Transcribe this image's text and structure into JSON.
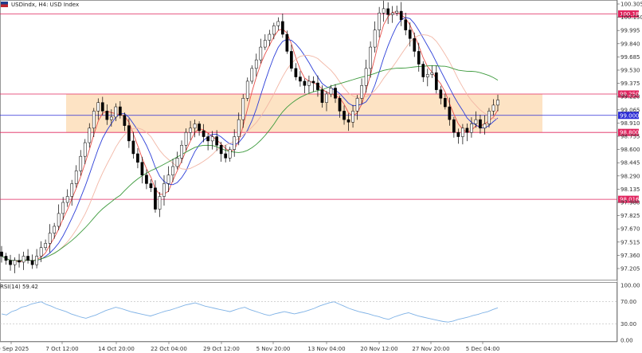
{
  "header": {
    "symbol": "USDindx",
    "timeframe": "H4",
    "description": "USD Index",
    "title": "USDindx, H4:  USD Index"
  },
  "rsi": {
    "label": "RSI(14) 59.42",
    "levels": [
      "100.00",
      "70.00",
      "30.00",
      "0.00"
    ]
  },
  "price_axis": {
    "labels": [
      "100.305",
      "100.150",
      "99.995",
      "99.840",
      "99.685",
      "99.530",
      "99.375",
      "99.220",
      "99.065",
      "98.910",
      "98.755",
      "98.600",
      "98.445",
      "98.290",
      "98.135",
      "97.980",
      "97.825",
      "97.670",
      "97.515",
      "97.360",
      "97.205"
    ]
  },
  "time_axis": {
    "labels": [
      "30 Sep 2025",
      "7 Oct 12:00",
      "14 Oct 20:00",
      "22 Oct 04:00",
      "29 Oct 12:00",
      "5 Nov 20:00",
      "13 Nov 04:00",
      "20 Nov 12:00",
      "27 Nov 20:00",
      "5 Dec 04:00"
    ]
  },
  "levels": [
    {
      "price": "100.188",
      "color": "#e0245e"
    },
    {
      "price": "99.250",
      "color": "#e0245e"
    },
    {
      "price": "99.000",
      "color": "#2b2bd6"
    },
    {
      "price": "98.800",
      "color": "#e0245e"
    },
    {
      "price": "98.016",
      "color": "#e0245e"
    }
  ],
  "current_price": "99.186",
  "colors": {
    "zone_fill": "#fde3c4",
    "ma_fast": "#e8514b",
    "ma_mid": "#2d3fd8",
    "ma_slow": "#3c9a3c",
    "ma_faint": "#f2b7a6",
    "rsi_line": "#7fb2e6",
    "candle": "#000000"
  },
  "price_series": [
    97.35,
    97.3,
    97.25,
    97.3,
    97.28,
    97.35,
    97.3,
    97.25,
    97.35,
    97.45,
    97.5,
    97.62,
    97.7,
    97.85,
    97.98,
    98.05,
    98.2,
    98.35,
    98.52,
    98.68,
    98.85,
    99.05,
    99.15,
    99.05,
    98.95,
    98.98,
    99.1,
    99.0,
    98.88,
    98.7,
    98.55,
    98.45,
    98.3,
    98.2,
    98.15,
    97.9,
    98.05,
    98.2,
    98.3,
    98.4,
    98.5,
    98.65,
    98.8,
    98.85,
    98.9,
    98.82,
    98.75,
    98.7,
    98.75,
    98.65,
    98.55,
    98.5,
    98.6,
    98.75,
    98.95,
    99.2,
    99.4,
    99.55,
    99.65,
    99.8,
    99.88,
    99.95,
    100.05,
    100.1,
    99.95,
    99.75,
    99.55,
    99.45,
    99.4,
    99.35,
    99.4,
    99.38,
    99.3,
    99.15,
    99.25,
    99.32,
    99.2,
    99.05,
    98.95,
    98.92,
    99.05,
    99.2,
    99.35,
    99.55,
    99.8,
    100.0,
    100.2,
    100.25,
    100.18,
    100.2,
    100.22,
    100.12,
    100.0,
    99.9,
    99.75,
    99.6,
    99.45,
    99.48,
    99.5,
    99.3,
    99.2,
    99.1,
    98.95,
    98.8,
    98.75,
    98.85,
    98.8,
    98.9,
    98.95,
    98.85,
    98.9,
    99.05,
    99.12,
    99.18
  ],
  "rsi_series": [
    48,
    46,
    52,
    55,
    60,
    62,
    66,
    68,
    70,
    65,
    62,
    58,
    55,
    52,
    48,
    45,
    42,
    40,
    43,
    46,
    50,
    54,
    57,
    60,
    58,
    55,
    52,
    50,
    48,
    46,
    44,
    47,
    50,
    53,
    55,
    58,
    61,
    64,
    66,
    68,
    65,
    62,
    60,
    58,
    56,
    54,
    52,
    55,
    58,
    60,
    56,
    53,
    50,
    47,
    45,
    48,
    50,
    52,
    50,
    48,
    50,
    52,
    55,
    58,
    62,
    65,
    68,
    70,
    66,
    62,
    58,
    55,
    52,
    50,
    48,
    45,
    43,
    40,
    38,
    42,
    45,
    48,
    50,
    47,
    44,
    42,
    40,
    38,
    36,
    34,
    33,
    35,
    38,
    40,
    42,
    45,
    47,
    50,
    52,
    56,
    59
  ]
}
